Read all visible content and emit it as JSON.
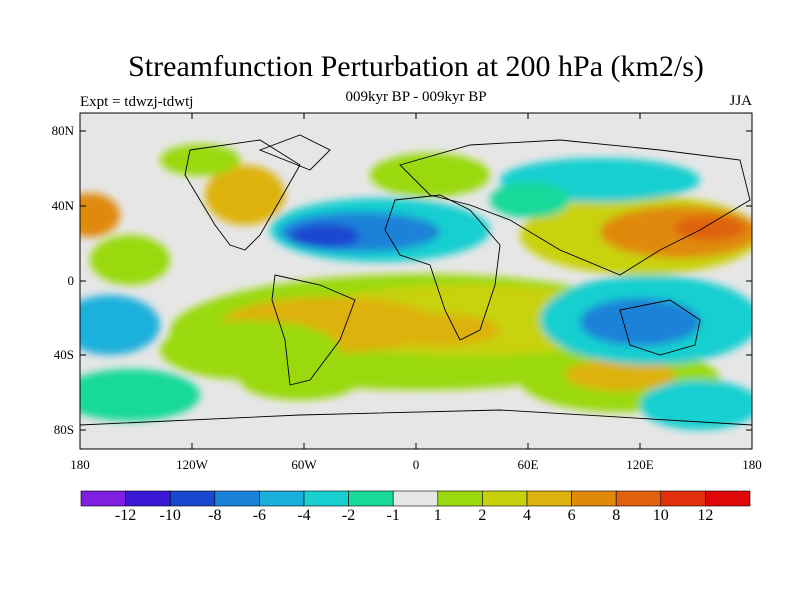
{
  "title": "Streamfunction Perturbation at 200 hPa (km2/s)",
  "subtitle": "009kyr BP - 009kyr BP",
  "left_label": "Expt = tdwzj-tdwtj",
  "right_label": "JJA",
  "lat_labels": [
    "80N",
    "40N",
    "0",
    "40S",
    "80S"
  ],
  "lon_labels": [
    "180",
    "120W",
    "60W",
    "0",
    "60E",
    "120E",
    "180"
  ],
  "colorbar": {
    "labels": [
      "-12",
      "-10",
      "-8",
      "-6",
      "-4",
      "-2",
      "-1",
      "1",
      "2",
      "4",
      "6",
      "8",
      "10",
      "12"
    ],
    "colors": [
      "#7f1fe0",
      "#3b18d6",
      "#1a47d0",
      "#1a82d8",
      "#1bb0dc",
      "#19cfd0",
      "#19d99a",
      "#e6e6e6",
      "#9ad90e",
      "#c8d20c",
      "#ddb20c",
      "#e08a0c",
      "#e0620c",
      "#e0300c",
      "#de0808"
    ]
  }
}
